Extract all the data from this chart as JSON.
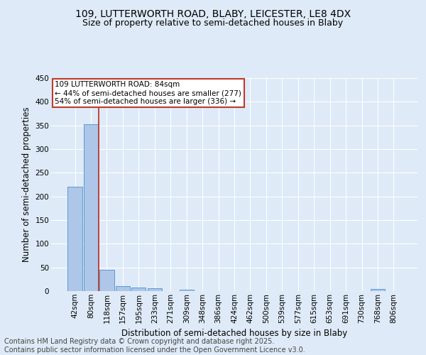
{
  "title_line1": "109, LUTTERWORTH ROAD, BLABY, LEICESTER, LE8 4DX",
  "title_line2": "Size of property relative to semi-detached houses in Blaby",
  "xlabel": "Distribution of semi-detached houses by size in Blaby",
  "ylabel": "Number of semi-detached properties",
  "footer_line1": "Contains HM Land Registry data © Crown copyright and database right 2025.",
  "footer_line2": "Contains public sector information licensed under the Open Government Licence v3.0.",
  "annotation_title": "109 LUTTERWORTH ROAD: 84sqm",
  "annotation_line2": "← 44% of semi-detached houses are smaller (277)",
  "annotation_line3": "54% of semi-detached houses are larger (336) →",
  "bin_labels": [
    "42sqm",
    "80sqm",
    "118sqm",
    "157sqm",
    "195sqm",
    "233sqm",
    "271sqm",
    "309sqm",
    "348sqm",
    "386sqm",
    "424sqm",
    "462sqm",
    "500sqm",
    "539sqm",
    "577sqm",
    "615sqm",
    "653sqm",
    "691sqm",
    "730sqm",
    "768sqm",
    "806sqm"
  ],
  "bin_values": [
    220,
    352,
    45,
    10,
    8,
    6,
    0,
    3,
    0,
    0,
    0,
    0,
    0,
    0,
    0,
    0,
    0,
    0,
    0,
    4,
    0
  ],
  "bar_color": "#aec6e8",
  "bar_edge_color": "#5b9bd5",
  "vline_color": "#c0392b",
  "vline_position": 1.5,
  "ylim": [
    0,
    450
  ],
  "yticks": [
    0,
    50,
    100,
    150,
    200,
    250,
    300,
    350,
    400,
    450
  ],
  "bg_color": "#deeaf7",
  "grid_color": "#ffffff",
  "annotation_box_facecolor": "#ffffff",
  "annotation_box_edgecolor": "#c0392b",
  "title_fontsize": 10,
  "subtitle_fontsize": 9,
  "axis_label_fontsize": 8.5,
  "tick_fontsize": 7.5,
  "annotation_fontsize": 7.5,
  "footer_fontsize": 7
}
